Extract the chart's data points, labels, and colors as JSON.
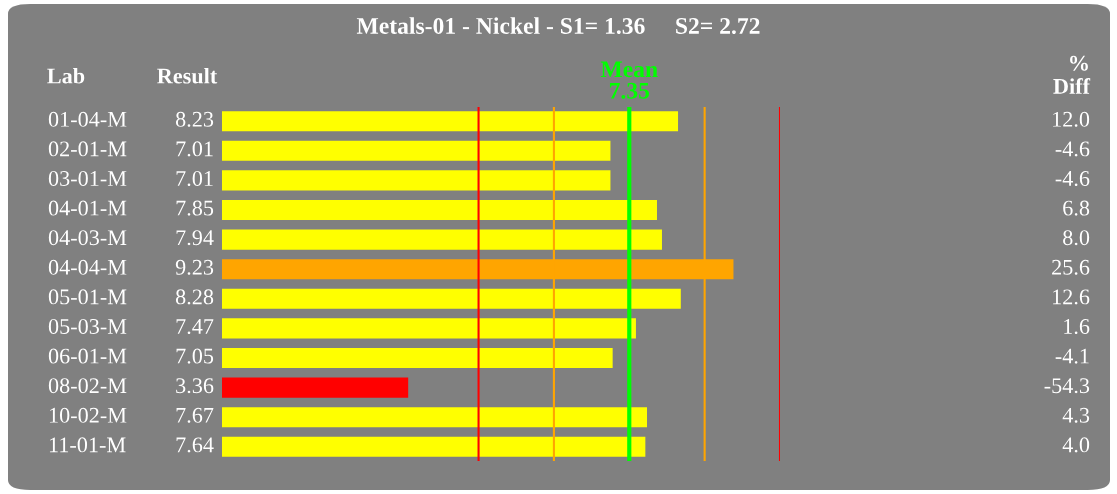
{
  "chart_data": {
    "type": "bar",
    "orientation": "horizontal",
    "title": "Metals-01 - Nickel - S1= 1.36     S2= 2.72",
    "ylabel": "Lab",
    "xlabel": "Result",
    "categories": [
      "01-04-M",
      "02-01-M",
      "03-01-M",
      "04-01-M",
      "04-03-M",
      "04-04-M",
      "05-01-M",
      "05-03-M",
      "06-01-M",
      "08-02-M",
      "10-02-M",
      "11-01-M"
    ],
    "values": [
      8.23,
      7.01,
      7.01,
      7.85,
      7.94,
      9.23,
      8.28,
      7.47,
      7.05,
      3.36,
      7.67,
      7.64
    ],
    "colors": [
      "#ffff00",
      "#ffff00",
      "#ffff00",
      "#ffff00",
      "#ffff00",
      "#ffa500",
      "#ffff00",
      "#ffff00",
      "#ffff00",
      "#ff0000",
      "#ffff00",
      "#ffff00"
    ],
    "data_labels": true,
    "legend": false,
    "ref_lines": [
      {
        "axis": "x",
        "value": 4.63,
        "color": "#ff0000"
      },
      {
        "axis": "x",
        "value": 5.99,
        "color": "#ffa500"
      },
      {
        "axis": "x",
        "value": 7.35,
        "label": "Mean\n7.35",
        "color": "#00ff00"
      },
      {
        "axis": "x",
        "value": 8.71,
        "color": "#ffa500"
      },
      {
        "axis": "x",
        "value": 10.07,
        "color": "#ff0000"
      }
    ],
    "annotations": [
      "%\nDiff",
      "12.0",
      "-4.6",
      "-4.6",
      "6.8",
      "8.0",
      "25.6",
      "12.6",
      "1.6",
      "-4.1",
      "-54.3",
      "4.3",
      "4.0"
    ]
  }
}
